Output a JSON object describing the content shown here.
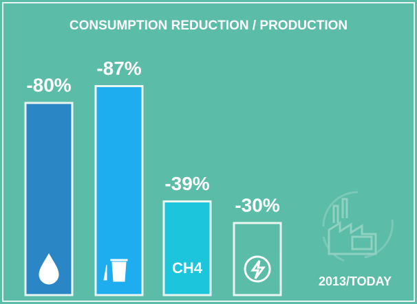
{
  "chart_data": {
    "type": "bar",
    "title": "CONSUMPTION REDUCTION / PRODUCTION",
    "categories": [
      null,
      null,
      "CH4",
      null
    ],
    "values": [
      -80,
      -87,
      -39,
      -30
    ],
    "value_labels": [
      "-80%",
      "-87%",
      "-39%",
      "-30%"
    ],
    "colors": [
      "#2a86c4",
      "#1eaef0",
      "#1cc4dc",
      "#5bbca8"
    ],
    "annotation": "2013/TODAY"
  }
}
